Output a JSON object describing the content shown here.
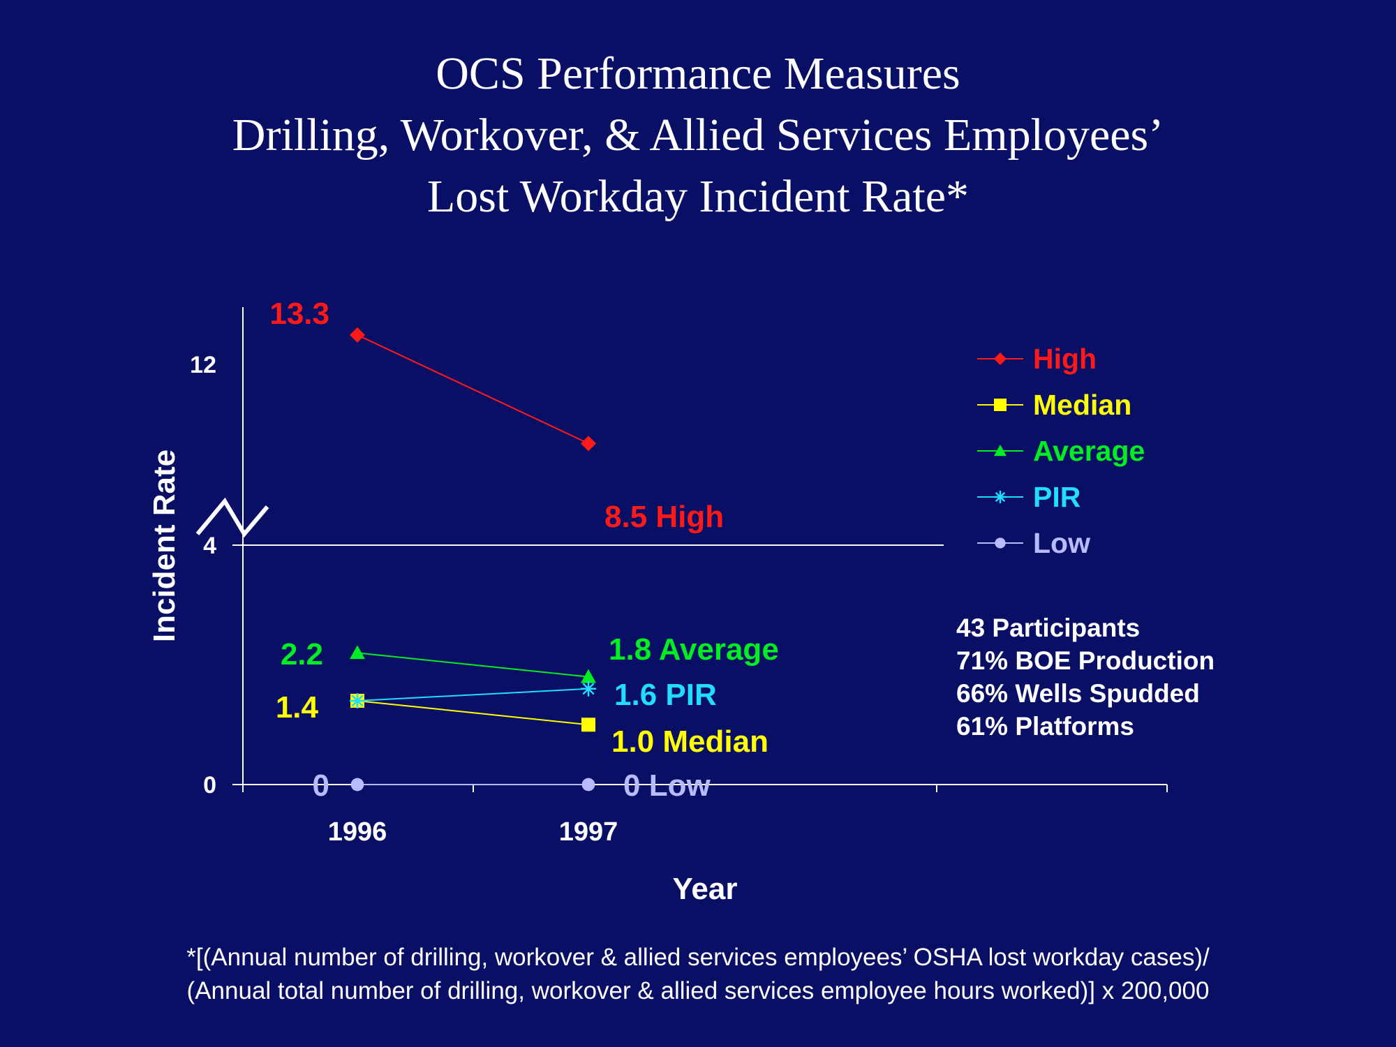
{
  "slide": {
    "title_lines": [
      "OCS Performance Measures",
      "Drilling, Workover, & Allied Services Employees’",
      "Lost Workday Incident Rate*"
    ],
    "info_lines": [
      "43 Participants",
      "71% BOE Production",
      "66% Wells Spudded",
      "61% Platforms"
    ],
    "footnote_lines": [
      "*[(Annual number of drilling, workover & allied services employees’ OSHA lost workday cases)/",
      "(Annual total number of drilling, workover & allied services employee hours worked)] x 200,000"
    ]
  },
  "chart_data": {
    "type": "line",
    "xlabel": "Year",
    "ylabel": "Incident Rate",
    "x": [
      "1996",
      "1997"
    ],
    "y_ticks": [
      "0",
      "4",
      "12"
    ],
    "axis_break": true,
    "legend_position": "right",
    "series": [
      {
        "name": "High",
        "values": [
          13.3,
          8.5
        ],
        "color": "#ff1a1a",
        "marker": "diamond",
        "labels": [
          "13.3",
          "8.5 High"
        ]
      },
      {
        "name": "Median",
        "values": [
          1.4,
          1.0
        ],
        "color": "#ffff00",
        "marker": "square",
        "labels": [
          "1.4",
          "1.0 Median"
        ]
      },
      {
        "name": "Average",
        "values": [
          2.2,
          1.8
        ],
        "color": "#00ee22",
        "marker": "triangle",
        "labels": [
          "2.2",
          "1.8 Average"
        ]
      },
      {
        "name": "PIR",
        "values": [
          1.4,
          1.6
        ],
        "color": "#22ddff",
        "marker": "asterisk",
        "labels": [
          "",
          "1.6 PIR"
        ]
      },
      {
        "name": "Low",
        "values": [
          0,
          0
        ],
        "color": "#b8bcff",
        "marker": "circle",
        "labels": [
          "0",
          "0 Low"
        ]
      }
    ]
  }
}
